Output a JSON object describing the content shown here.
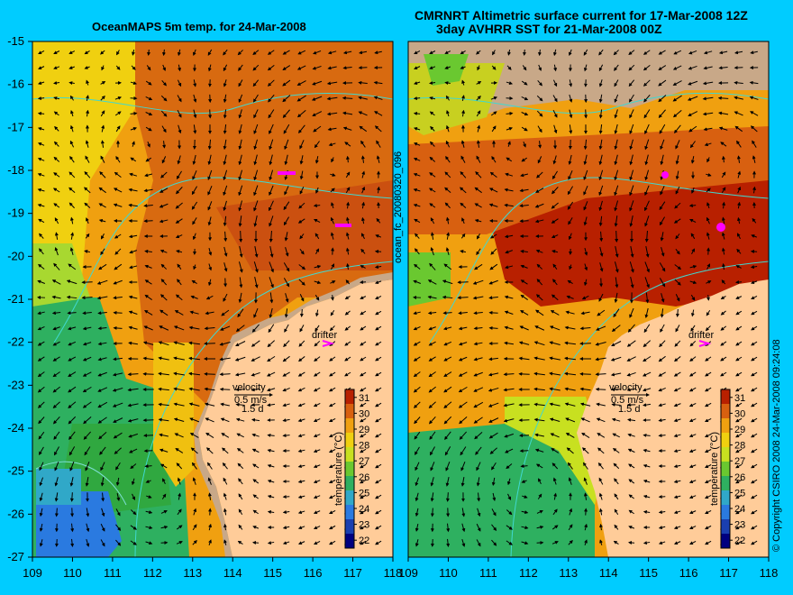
{
  "panels": [
    {
      "title": "OceanMAPS 5m temp. for 24-Mar-2008",
      "lon_range": [
        109,
        118
      ],
      "lat_range": [
        -27,
        -15
      ],
      "product": "model"
    },
    {
      "title_line1": "CMRNRT Altimetric surface current for 17-Mar-2008 12Z",
      "title_line2": "3day AVHRR SST for 21-Mar-2008 00Z",
      "lon_range": [
        109,
        118
      ],
      "lat_range": [
        -27,
        -15
      ],
      "product": "satellite"
    }
  ],
  "x_ticks": [
    "109",
    "110",
    "111",
    "112",
    "113",
    "114",
    "115",
    "116",
    "117",
    "118"
  ],
  "y_ticks": [
    "-15",
    "-16",
    "-17",
    "-18",
    "-19",
    "-20",
    "-21",
    "-22",
    "-23",
    "-24",
    "-25",
    "-26",
    "-27"
  ],
  "colorbar": {
    "label": "temperature (°C)",
    "ticks": [
      "31",
      "30",
      "29",
      "28",
      "27",
      "26",
      "25",
      "24",
      "23",
      "22"
    ],
    "range": [
      21.5,
      31.5
    ],
    "colors": [
      "#000080",
      "#1a3fb0",
      "#2a7ae0",
      "#30a8c8",
      "#2eb060",
      "#6ac830",
      "#c8e020",
      "#f0d010",
      "#f0a010",
      "#d86010",
      "#b82000"
    ]
  },
  "annotations": {
    "drifter": "drifter",
    "velocity": "velocity",
    "speed": "0.5 m/s",
    "days": "1.5 d"
  },
  "side_label": "ocean_fc_20080320_096",
  "copyright": "© Copyright CSIRO 2008   24-Mar-2008 09:24:08",
  "colors": {
    "background": "#00ccff",
    "land": "#ffcc99",
    "shelf_land": "#c8a888",
    "isobath": "#40d8d0",
    "drifter": "#ff00ff",
    "arrow": "#000000"
  }
}
